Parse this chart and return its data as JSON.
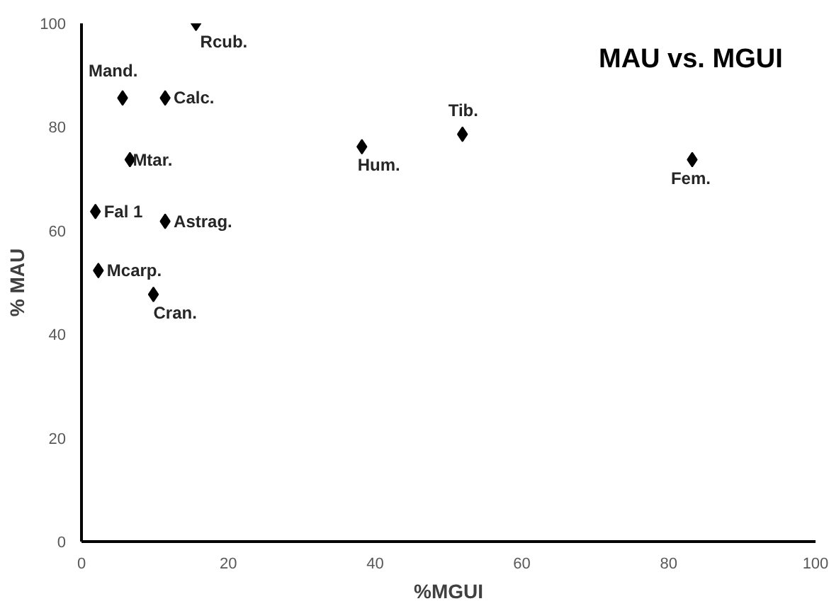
{
  "chart_data": {
    "type": "scatter",
    "title": "MAU vs. MGUI",
    "xlabel": "%MGUI",
    "ylabel": "% MAU",
    "x": [
      15.6,
      5.6,
      11.4,
      6.6,
      38.2,
      51.9,
      83.2,
      1.9,
      11.4,
      2.3,
      9.8
    ],
    "series": [
      {
        "color": "#000000",
        "values": [
          100,
          85.6,
          85.6,
          73.7,
          76.2,
          78.6,
          73.7,
          63.7,
          61.8,
          52.3,
          47.7
        ]
      }
    ],
    "annotations": [
      {
        "text": "Rcub.",
        "x": 15.6,
        "y": 100
      },
      {
        "text": "Mand.",
        "x": 5.6,
        "y": 85.6
      },
      {
        "text": "Calc.",
        "x": 11.4,
        "y": 85.6
      },
      {
        "text": "Mtar.",
        "x": 6.6,
        "y": 73.7
      },
      {
        "text": "Hum.",
        "x": 38.2,
        "y": 76.2
      },
      {
        "text": "Tib.",
        "x": 51.9,
        "y": 78.6
      },
      {
        "text": "Fem.",
        "x": 83.2,
        "y": 73.7
      },
      {
        "text": "Fal 1",
        "x": 1.9,
        "y": 63.7
      },
      {
        "text": "Astrag.",
        "x": 11.4,
        "y": 61.8
      },
      {
        "text": "Mcarp.",
        "x": 2.3,
        "y": 52.3
      },
      {
        "text": "Cran.",
        "x": 9.8,
        "y": 47.7
      }
    ],
    "xlim": [
      0,
      100
    ],
    "ylim": [
      0,
      100
    ],
    "xticks": [
      0,
      20,
      40,
      60,
      80,
      100
    ],
    "yticks": [
      0,
      20,
      40,
      60,
      80,
      100
    ],
    "marker": "diamond",
    "grid": false
  }
}
